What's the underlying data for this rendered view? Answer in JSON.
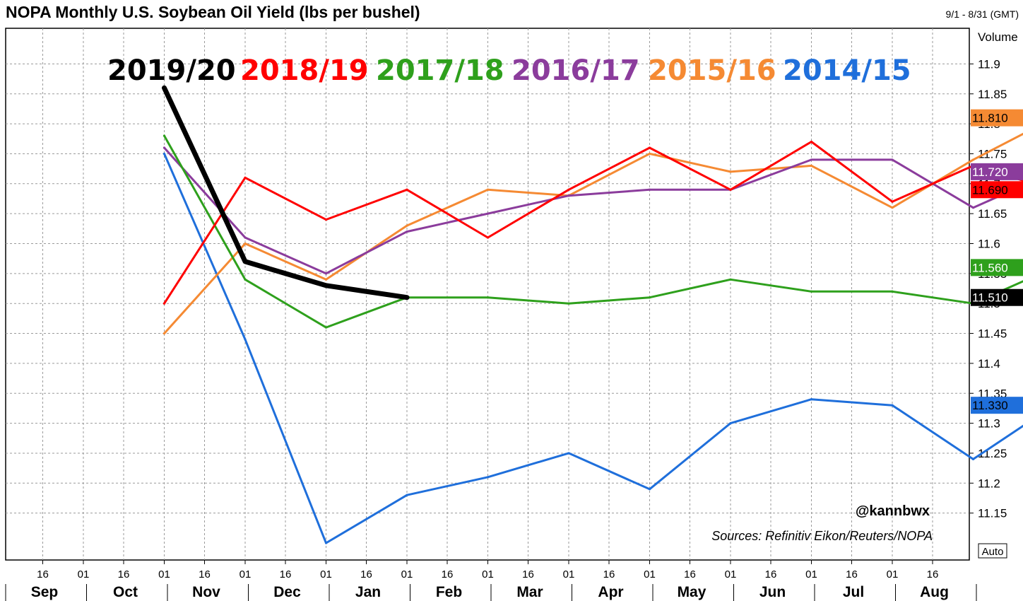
{
  "header": {
    "title": "NOPA Monthly U.S. Soybean Oil Yield (lbs per bushel)",
    "range": "9/1 - 8/31 (GMT)"
  },
  "chart_data": {
    "type": "line",
    "title": "NOPA Monthly U.S. Soybean Oil Yield (lbs per bushel)",
    "xlabel": "",
    "ylabel": "Volume",
    "ylim": [
      11.1,
      11.95
    ],
    "grid": true,
    "legend_position": "top",
    "y_ticks": [
      "11.15",
      "11.2",
      "11.25",
      "11.3",
      "11.35",
      "11.4",
      "11.45",
      "11.5",
      "11.55",
      "11.6",
      "11.65",
      "11.7",
      "11.75",
      "11.8",
      "11.85",
      "11.9"
    ],
    "x_months": [
      "Sep",
      "Oct",
      "Nov",
      "Dec",
      "Jan",
      "Feb",
      "Mar",
      "Apr",
      "May",
      "Jun",
      "Jul",
      "Aug"
    ],
    "x_day_labels": [
      "01",
      "16"
    ],
    "x_points": [
      "Sep 01",
      "Oct 01",
      "Nov 01",
      "Dec 01",
      "Jan 01",
      "Feb 01",
      "Mar 01",
      "Apr 01",
      "May 01",
      "Jun 01",
      "Jul 01",
      "Aug 01",
      "Sep 01"
    ],
    "series": [
      {
        "name": "2014/15",
        "color": "#1f6fdb",
        "width": 3,
        "values": [
          null,
          11.75,
          11.44,
          11.1,
          11.18,
          11.21,
          11.25,
          11.19,
          11.3,
          11.34,
          11.33,
          11.24,
          11.33
        ],
        "last_label": "11.330"
      },
      {
        "name": "2015/16",
        "color": "#f58a33",
        "width": 3,
        "values": [
          null,
          11.45,
          11.6,
          11.54,
          11.63,
          11.69,
          11.68,
          11.75,
          11.72,
          11.73,
          11.66,
          11.74,
          11.81
        ],
        "last_label": "11.810"
      },
      {
        "name": "2016/17",
        "color": "#8b3c9c",
        "width": 3,
        "values": [
          null,
          11.76,
          11.61,
          11.55,
          11.62,
          11.65,
          11.68,
          11.69,
          11.69,
          11.74,
          11.74,
          11.66,
          11.72
        ],
        "last_label": "11.720"
      },
      {
        "name": "2017/18",
        "color": "#2ea01c",
        "width": 3,
        "values": [
          null,
          11.78,
          11.54,
          11.46,
          11.51,
          11.51,
          11.5,
          11.51,
          11.54,
          11.52,
          11.52,
          11.5,
          11.56
        ],
        "last_label": "11.560"
      },
      {
        "name": "2018/19",
        "color": "#ff0000",
        "width": 3,
        "values": [
          null,
          11.5,
          11.71,
          11.64,
          11.69,
          11.61,
          11.69,
          11.76,
          11.69,
          11.77,
          11.67,
          11.73,
          11.69
        ],
        "last_label": "11.690"
      },
      {
        "name": "2019/20",
        "color": "#000000",
        "width": 7,
        "values": [
          null,
          11.86,
          11.57,
          11.53,
          11.51,
          null,
          null,
          null,
          null,
          null,
          null,
          null,
          null
        ],
        "last_label": "11.510"
      }
    ]
  },
  "legend": {
    "order": [
      "2019/20",
      "2018/19",
      "2017/18",
      "2016/17",
      "2015/16",
      "2014/15"
    ],
    "colors": [
      "#000000",
      "#ff0000",
      "#2ea01c",
      "#8b3c9c",
      "#f58a33",
      "#1f6fdb"
    ]
  },
  "badges": [
    {
      "text": "11.810",
      "value": 11.81,
      "bg": "#f58a33",
      "fg": "#000000"
    },
    {
      "text": "11.720",
      "value": 11.72,
      "bg": "#8b3c9c",
      "fg": "#ffffff"
    },
    {
      "text": "11.690",
      "value": 11.69,
      "bg": "#ff0000",
      "fg": "#000000"
    },
    {
      "text": "11.560",
      "value": 11.56,
      "bg": "#2ea01c",
      "fg": "#ffffff"
    },
    {
      "text": "11.510",
      "value": 11.51,
      "bg": "#000000",
      "fg": "#ffffff"
    },
    {
      "text": "11.330",
      "value": 11.33,
      "bg": "#1f6fdb",
      "fg": "#000000"
    }
  ],
  "annotations": {
    "handle": "@kannbwx",
    "source": "Sources: Refinitiv Eikon/Reuters/NOPA",
    "auto_label": "Auto",
    "volume_label": "Volume"
  }
}
